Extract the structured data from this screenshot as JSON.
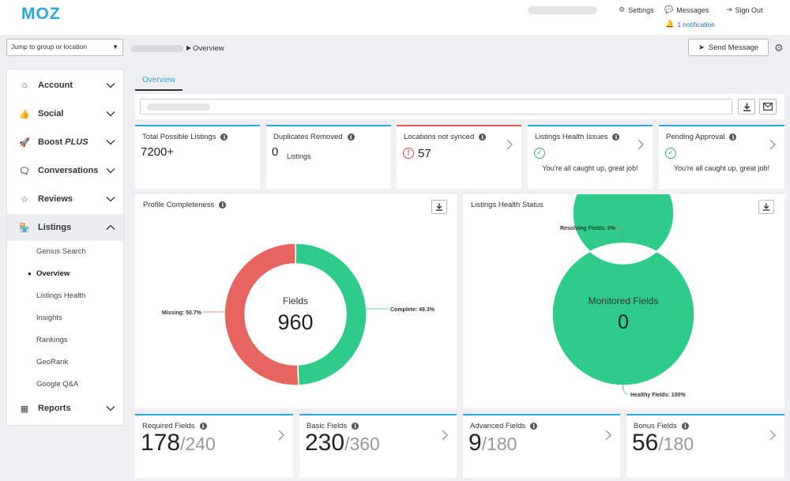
{
  "header": {
    "logo": "MOZ",
    "settings_label": "Settings",
    "messages_label": "Messages",
    "signout_label": "Sign Out",
    "notification_label": "1 notification"
  },
  "toolbar": {
    "jump_placeholder": "Jump to group or location",
    "breadcrumb_current": "Overview",
    "send_message_label": "Send Message"
  },
  "sidebar": {
    "items": [
      {
        "label": "Account",
        "icon": "home-icon"
      },
      {
        "label": "Social",
        "icon": "thumbs-up-icon"
      },
      {
        "label": "Boost PLUS",
        "icon": "rocket-icon"
      },
      {
        "label": "Conversations",
        "icon": "chat-icon"
      },
      {
        "label": "Reviews",
        "icon": "star-icon"
      },
      {
        "label": "Listings",
        "icon": "store-icon"
      },
      {
        "label": "Reports",
        "icon": "chart-icon"
      }
    ],
    "boost_main": "Boost",
    "boost_plus": "PLUS",
    "listings_sub": [
      "Genius Search",
      "Overview",
      "Listings Health",
      "Insights",
      "Rankings",
      "GeoRank",
      "Google Q&A"
    ]
  },
  "main": {
    "tab_label": "Overview",
    "cards": {
      "total_listings": {
        "title": "Total Possible Listings",
        "value": "7200+"
      },
      "duplicates": {
        "title": "Duplicates Removed",
        "value": "0",
        "unit": "Listings"
      },
      "not_synced": {
        "title": "Locations not synced",
        "value": "57"
      },
      "health_issues": {
        "title": "Listings Health Issues",
        "message": "You're all caught up, great job!"
      },
      "pending": {
        "title": "Pending Approval",
        "message": "You're all caught up, great job!"
      }
    },
    "profile_completeness": {
      "title": "Profile Completeness",
      "center_label": "Fields",
      "center_value": "960",
      "missing_label": "Missing: 50.7%",
      "complete_label": "Complete: 49.3%"
    },
    "listings_health": {
      "title": "Listings Health Status",
      "center_label": "Monitored Fields",
      "center_value": "0",
      "resolving_label": "Resolving Fields: 0%",
      "healthy_label": "Healthy Fields: 100%"
    },
    "stats": [
      {
        "title": "Required Fields",
        "value": "178",
        "total": "/240"
      },
      {
        "title": "Basic Fields",
        "value": "230",
        "total": "/360"
      },
      {
        "title": "Advanced Fields",
        "value": "9",
        "total": "/180"
      },
      {
        "title": "Bonus Fields",
        "value": "56",
        "total": "/180"
      }
    ]
  },
  "chart_data": [
    {
      "type": "pie",
      "title": "Profile Completeness",
      "categories": [
        "Missing",
        "Complete"
      ],
      "values": [
        50.7,
        49.3
      ],
      "colors": [
        "#e86461",
        "#2fcb8a"
      ]
    },
    {
      "type": "pie",
      "title": "Listings Health Status",
      "categories": [
        "Resolving Fields",
        "Healthy Fields"
      ],
      "values": [
        0,
        100
      ],
      "colors": [
        "#e86461",
        "#2fcb8a"
      ]
    }
  ]
}
